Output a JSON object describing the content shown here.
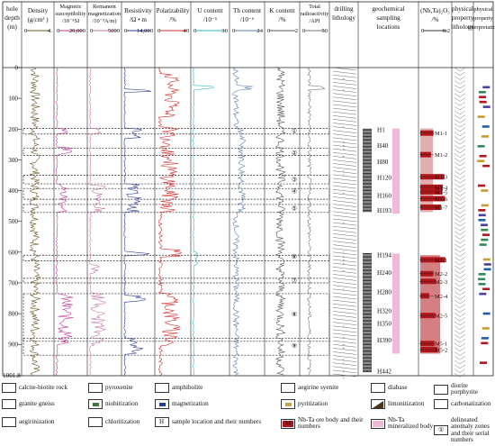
{
  "columns": {
    "depth": {
      "line1": "hole",
      "line2": "depth",
      "line3": "(m)"
    },
    "density": {
      "line1": "Density",
      "line2": "(g/cm³ )",
      "rmin": "0",
      "rmax": "4."
    },
    "magsus": {
      "line1": "Magnetic",
      "line2": "susceptibility",
      "line3": "/10⁻⁵SI",
      "rmin": "0",
      "rmax": "20,000"
    },
    "remanent": {
      "line1": "Remanent",
      "line2": "magnetization",
      "line3": "/10⁻³A/m)",
      "rmin": "0",
      "rmax": "5000"
    },
    "resistivity": {
      "line1": "Resistivity",
      "line2": "/Ω • m",
      "rmin": "0",
      "rmax": "14,000"
    },
    "polar": {
      "line1": "Polarizability",
      "line2": "/%",
      "rmin": "0",
      "rmax": "40"
    },
    "uranium": {
      "line1": "U content",
      "line2": "/10⁻⁶",
      "rmin": "0",
      "rmax": "30"
    },
    "thorium": {
      "line1": "Th content",
      "line2": "/10⁻⁶",
      "rmin": "0",
      "rmax": "24"
    },
    "potassium": {
      "line1": "K content",
      "line2": "/%",
      "rmin": "0",
      "rmax": "2"
    },
    "radio": {
      "line1": "Total",
      "line2": "radioactivity",
      "line3": "/API",
      "rmin": "0",
      "rmax": "50"
    },
    "drilling": {
      "line1": "drilling",
      "line2": "lithology"
    },
    "geochem": {
      "line1": "geochemical",
      "line2": "sampling",
      "line3": "locations"
    },
    "nbta": {
      "line1": "(Nb,Ta)₂O₅",
      "line2": "/%",
      "rmin": "0",
      "rmax": "0.2"
    },
    "physlith": {
      "line1": "physical",
      "line2": "property",
      "line3": "lithology"
    },
    "physint": {
      "line1": "physical",
      "line2": "property",
      "line3": "interpretation"
    }
  },
  "depth_ticks": [
    "0",
    "100",
    "200",
    "300",
    "400",
    "500",
    "600",
    "700",
    "800",
    "900",
    "1001.8"
  ],
  "zone_numbers": [
    "①",
    "②",
    "③",
    "④",
    "⑤",
    "⑥",
    "⑦",
    "⑧",
    "⑨"
  ],
  "sample_labels": [
    {
      "name": "H1",
      "depth": 200
    },
    {
      "name": "H40",
      "depth": 252
    },
    {
      "name": "H80",
      "depth": 305
    },
    {
      "name": "H120",
      "depth": 356
    },
    {
      "name": "H160",
      "depth": 414
    },
    {
      "name": "H193",
      "depth": 463
    },
    {
      "name": "H194",
      "depth": 608
    },
    {
      "name": "H240",
      "depth": 665
    },
    {
      "name": "H280",
      "depth": 728
    },
    {
      "name": "H320",
      "depth": 790
    },
    {
      "name": "H350",
      "depth": 830
    },
    {
      "name": "H390",
      "depth": 884
    },
    {
      "name": "H442",
      "depth": 985
    }
  ],
  "ore_bodies": [
    {
      "name": "M1-1",
      "depth": 213
    },
    {
      "name": "M1-2",
      "depth": 283
    },
    {
      "name": "M1-3",
      "depth": 355
    },
    {
      "name": "M1-4",
      "depth": 389
    },
    {
      "name": "M1-5",
      "depth": 404
    },
    {
      "name": "M1-6",
      "depth": 426
    },
    {
      "name": "M1-7",
      "depth": 454
    },
    {
      "name": "M2-1",
      "depth": 625
    },
    {
      "name": "M2-2",
      "depth": 670
    },
    {
      "name": "M2-3",
      "depth": 695
    },
    {
      "name": "M2-4",
      "depth": 742
    },
    {
      "name": "M2-5",
      "depth": 806
    },
    {
      "name": "M5-1",
      "depth": 897
    },
    {
      "name": "M5-2",
      "depth": 917
    }
  ],
  "legend": [
    {
      "label": "calcite-biotite rock",
      "icon": "calcite-biotite-icon"
    },
    {
      "label": "pyroxenite",
      "icon": "pyroxenite-icon"
    },
    {
      "label": "amphibolite",
      "icon": "amphibolite-icon"
    },
    {
      "label": "aegirine syenite",
      "icon": "aegirine-syenite-icon"
    },
    {
      "label": "diabase",
      "icon": "diabase-icon"
    },
    {
      "label": "diorite porphyrite",
      "icon": "diorite-porphyrite-icon"
    },
    {
      "label": "granite gneiss",
      "icon": "granite-gneiss-icon"
    },
    {
      "label": "niobitization",
      "icon": "niobitization-icon"
    },
    {
      "label": "magnetization",
      "icon": "magnetization-icon"
    },
    {
      "label": "pyritization",
      "icon": "pyritization-icon"
    },
    {
      "label": "limonitization",
      "icon": "limonitization-icon"
    },
    {
      "label": "carbonatization",
      "icon": "carbonatization-icon"
    },
    {
      "label": "aegirinization",
      "icon": "aegirinization-icon"
    },
    {
      "label": "chloritization",
      "icon": "chloritization-icon"
    },
    {
      "label": "sample location and their numbers",
      "icon": "sample-location-icon"
    },
    {
      "label": "Nb-Ta ore body and their numbers",
      "icon": "ore-body-icon"
    },
    {
      "label": "Nb-Ta mineralized body",
      "icon": "mineralized-body-icon"
    },
    {
      "label": "delineated anomaly zones and their serial numbers",
      "icon": "anomaly-zone-icon"
    }
  ],
  "legend_symbols": {
    "sample": "H",
    "ore": "M",
    "zone": "①"
  },
  "colors": {
    "density": "#6b5a2a",
    "magsus": "#c0399b",
    "remanent": "#c47aa6",
    "resistivity": "#2b3a8f",
    "polar": "#d62d2d",
    "uranium": "#2bb5c7",
    "thorium": "#5a7fb0",
    "potassium": "#555555",
    "radio": "#7a7a7a",
    "ore": "#b0161b",
    "mineralized": "#f2b8d8"
  }
}
